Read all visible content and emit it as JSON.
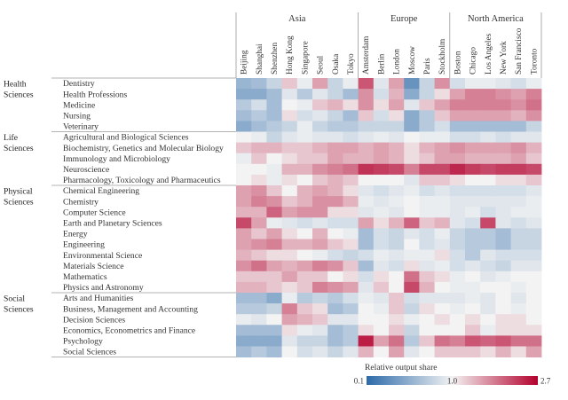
{
  "chart_data": {
    "type": "heatmap",
    "region_groups": [
      {
        "name": "Asia",
        "cities": [
          "Beijing",
          "Shanghai",
          "Shenzhen",
          "Hong Kong",
          "Singapore",
          "Seoul",
          "Osaka",
          "Tokyo"
        ]
      },
      {
        "name": "Europe",
        "cities": [
          "Amsterdam",
          "Berlin",
          "London",
          "Moscow",
          "Paris",
          "Stockholm"
        ]
      },
      {
        "name": "North America",
        "cities": [
          "Boston",
          "Chicago",
          "Los Angeles",
          "New York",
          "San Francisco",
          "Toronto"
        ]
      }
    ],
    "field_groups": [
      {
        "name_lines": [
          "Health",
          "Sciences"
        ],
        "subjects": [
          "Dentistry",
          "Health Professions",
          "Medicine",
          "Nursing",
          "Veterinary"
        ]
      },
      {
        "name_lines": [
          "Life",
          "Sciences"
        ],
        "subjects": [
          "Agricultural and Biological Sciences",
          "Biochemistry, Genetics and Molecular Biology",
          "Immunology and Microbiology",
          "Neuroscience",
          "Pharmacology, Toxicology and Pharmaceutics"
        ]
      },
      {
        "name_lines": [
          "Physical",
          "Sciences"
        ],
        "subjects": [
          "Chemical Engineering",
          "Chemistry",
          "Computer Science",
          "Earth and Planetary Sciences",
          "Energy",
          "Engineering",
          "Environmental Science",
          "Materials Science",
          "Mathematics",
          "Physics and Astronomy"
        ]
      },
      {
        "name_lines": [
          "Social",
          "Sciences"
        ],
        "subjects": [
          "Arts and Humanities",
          "Business, Management and Accounting",
          "Decision Sciences",
          "Economics, Econometrics and Finance",
          "Psychology",
          "Social Sciences"
        ]
      }
    ],
    "values": [
      [
        0.35,
        0.4,
        0.6,
        1.2,
        0.9,
        1.4,
        0.6,
        0.9,
        1.9,
        0.8,
        1.4,
        0.2,
        0.6,
        1.5,
        0.7,
        0.9,
        0.9,
        0.8,
        0.7,
        0.9
      ],
      [
        0.3,
        0.3,
        0.4,
        0.8,
        0.5,
        0.8,
        0.6,
        0.4,
        1.5,
        0.7,
        1.3,
        0.3,
        0.6,
        1.1,
        1.4,
        1.6,
        1.6,
        1.5,
        1.4,
        1.6
      ],
      [
        0.5,
        0.7,
        0.4,
        1.0,
        0.9,
        1.2,
        1.3,
        1.1,
        1.5,
        1.1,
        1.4,
        0.8,
        1.2,
        1.4,
        1.6,
        1.6,
        1.6,
        1.6,
        1.5,
        1.7
      ],
      [
        0.4,
        0.5,
        0.4,
        1.1,
        0.7,
        0.8,
        0.6,
        0.4,
        1.2,
        0.7,
        1.1,
        0.3,
        0.5,
        1.2,
        1.4,
        1.4,
        1.4,
        1.4,
        1.3,
        1.5
      ],
      [
        0.3,
        0.4,
        0.5,
        0.6,
        0.9,
        0.6,
        0.5,
        0.5,
        0.6,
        0.6,
        0.6,
        0.3,
        0.5,
        0.7,
        0.4,
        0.4,
        0.4,
        0.4,
        0.4,
        0.6
      ],
      [
        1.0,
        0.9,
        0.6,
        0.8,
        0.9,
        0.8,
        0.8,
        0.7,
        0.8,
        0.9,
        0.8,
        1.0,
        0.9,
        0.9,
        0.7,
        0.7,
        0.8,
        0.7,
        0.8,
        0.8
      ],
      [
        1.2,
        1.3,
        1.3,
        1.2,
        1.2,
        1.3,
        1.4,
        1.4,
        1.3,
        1.4,
        1.3,
        1.1,
        1.3,
        1.4,
        1.5,
        1.4,
        1.4,
        1.4,
        1.5,
        1.3
      ],
      [
        0.9,
        1.2,
        1.0,
        1.1,
        1.2,
        1.2,
        1.4,
        1.3,
        1.3,
        1.4,
        1.3,
        1.1,
        1.2,
        1.4,
        1.4,
        1.3,
        1.3,
        1.3,
        1.4,
        1.2
      ],
      [
        1.0,
        1.0,
        0.9,
        1.3,
        1.3,
        1.5,
        1.6,
        1.7,
        2.2,
        2.1,
        2.0,
        1.6,
        2.0,
        2.0,
        2.3,
        2.1,
        2.0,
        2.1,
        2.1,
        2.0
      ],
      [
        1.0,
        1.1,
        0.9,
        1.1,
        1.0,
        1.2,
        1.3,
        1.2,
        1.0,
        1.0,
        1.0,
        0.8,
        1.2,
        1.2,
        1.1,
        1.0,
        1.0,
        1.1,
        1.1,
        1.2
      ],
      [
        1.4,
        1.5,
        1.2,
        1.0,
        1.3,
        1.4,
        1.3,
        1.1,
        0.8,
        0.7,
        0.8,
        0.9,
        0.7,
        0.8,
        0.7,
        0.7,
        0.7,
        0.7,
        0.7,
        0.8
      ],
      [
        1.4,
        1.6,
        1.5,
        1.2,
        1.3,
        1.5,
        1.5,
        1.3,
        0.9,
        0.8,
        0.9,
        1.0,
        0.9,
        0.9,
        0.8,
        0.8,
        0.8,
        0.8,
        0.8,
        0.9
      ],
      [
        1.3,
        1.3,
        1.8,
        1.4,
        1.5,
        1.5,
        1.1,
        1.1,
        0.8,
        0.9,
        0.8,
        1.0,
        0.9,
        0.9,
        0.8,
        0.9,
        0.7,
        0.8,
        0.9,
        0.9
      ],
      [
        2.0,
        1.4,
        0.9,
        0.8,
        0.7,
        0.8,
        0.7,
        0.7,
        1.4,
        1.1,
        1.3,
        1.8,
        1.2,
        1.3,
        0.8,
        0.7,
        2.0,
        0.8,
        0.7,
        0.8
      ],
      [
        1.4,
        1.2,
        1.4,
        1.1,
        1.0,
        1.3,
        1.0,
        0.9,
        0.4,
        0.7,
        0.6,
        0.8,
        0.7,
        0.9,
        0.6,
        0.5,
        0.5,
        0.4,
        0.6,
        0.6
      ],
      [
        1.4,
        1.5,
        1.6,
        1.3,
        1.3,
        1.4,
        1.2,
        1.1,
        0.4,
        0.7,
        0.6,
        1.0,
        0.7,
        0.8,
        0.6,
        0.5,
        0.5,
        0.4,
        0.6,
        0.6
      ],
      [
        1.3,
        1.2,
        1.1,
        1.1,
        1.0,
        0.9,
        0.7,
        0.6,
        0.7,
        0.9,
        0.8,
        0.9,
        0.9,
        1.1,
        0.7,
        0.5,
        0.8,
        0.7,
        0.7,
        0.7
      ],
      [
        1.5,
        1.7,
        1.4,
        1.3,
        1.4,
        1.6,
        1.5,
        1.2,
        0.4,
        0.8,
        0.7,
        1.1,
        0.8,
        0.9,
        0.7,
        0.8,
        0.7,
        0.6,
        0.8,
        0.8
      ],
      [
        1.2,
        1.2,
        1.2,
        1.4,
        1.2,
        1.2,
        1.0,
        1.1,
        0.7,
        1.1,
        1.0,
        1.7,
        1.2,
        1.1,
        0.9,
        1.0,
        0.8,
        0.9,
        1.0,
        1.0
      ],
      [
        1.3,
        1.3,
        1.2,
        1.1,
        1.2,
        1.6,
        1.5,
        1.4,
        0.8,
        1.2,
        1.0,
        2.0,
        1.3,
        1.0,
        0.9,
        0.9,
        1.0,
        1.0,
        0.9,
        1.0
      ],
      [
        0.4,
        0.4,
        0.3,
        0.9,
        0.5,
        0.6,
        0.5,
        0.7,
        0.9,
        0.8,
        1.2,
        0.7,
        0.8,
        0.8,
        0.8,
        0.9,
        0.8,
        1.0,
        0.8,
        1.0
      ],
      [
        0.5,
        0.5,
        0.6,
        1.6,
        1.2,
        1.1,
        0.4,
        0.5,
        1.0,
        0.9,
        1.2,
        0.6,
        1.1,
        1.0,
        0.9,
        1.0,
        0.8,
        1.0,
        0.9,
        1.0
      ],
      [
        0.9,
        0.8,
        1.0,
        1.4,
        1.3,
        1.2,
        0.8,
        0.8,
        1.0,
        1.0,
        1.1,
        0.9,
        1.0,
        1.1,
        1.0,
        1.1,
        1.0,
        1.1,
        1.1,
        1.0
      ],
      [
        0.4,
        0.4,
        0.4,
        1.1,
        0.9,
        0.8,
        0.4,
        0.5,
        1.1,
        1.0,
        1.2,
        0.6,
        1.0,
        1.0,
        1.0,
        1.2,
        0.9,
        1.1,
        1.1,
        1.1
      ],
      [
        0.3,
        0.3,
        0.3,
        0.8,
        0.6,
        0.6,
        0.4,
        0.5,
        2.4,
        1.4,
        1.7,
        0.5,
        1.2,
        1.7,
        1.6,
        1.9,
        1.8,
        1.9,
        1.7,
        1.7
      ],
      [
        0.4,
        0.5,
        0.4,
        1.0,
        0.7,
        0.8,
        0.6,
        0.8,
        1.3,
        1.0,
        1.4,
        0.8,
        1.0,
        1.2,
        1.2,
        1.2,
        1.1,
        1.3,
        1.1,
        1.4
      ]
    ],
    "legend": {
      "title": "Relative output share",
      "min": 0.1,
      "mid": 1.0,
      "max": 2.7,
      "tick_labels": [
        "0.1",
        "1.0",
        "2.7"
      ]
    },
    "colors": {
      "low": "#2c6aa9",
      "mid": "#f3f3f3",
      "high": "#b3002d"
    }
  }
}
